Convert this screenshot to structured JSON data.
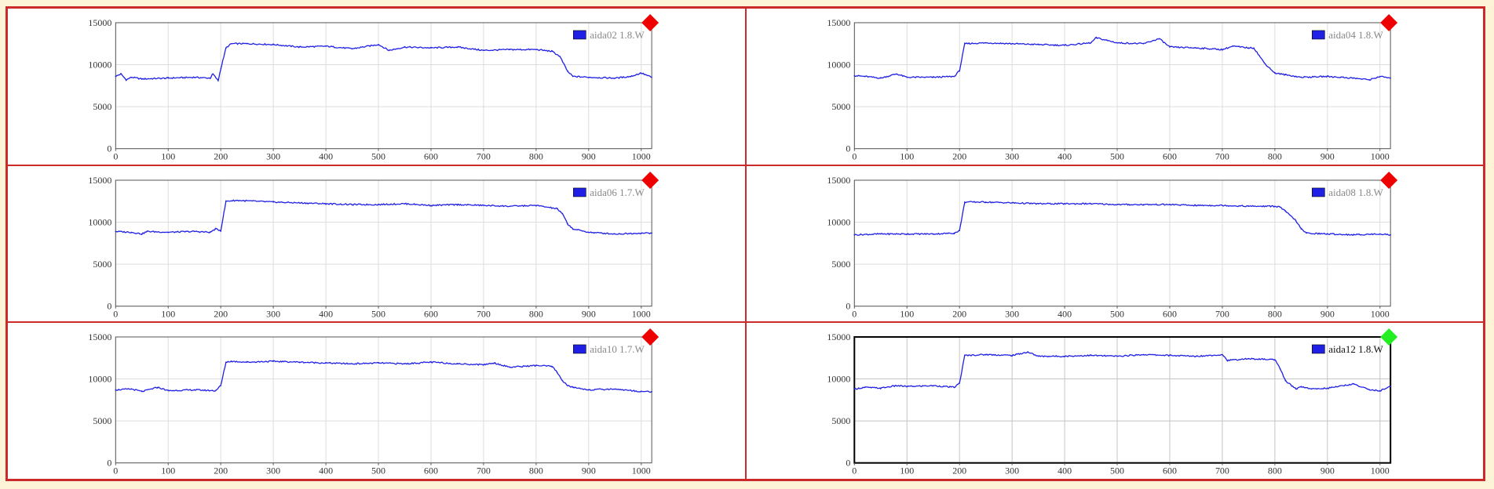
{
  "colors": {
    "line": "#1f1fe6",
    "alarm": "#ee0000",
    "ok": "#22ee22",
    "frame": "#cc2b2b",
    "grid": "#dddddd",
    "background": "#fdf3d7"
  },
  "chart_data": [
    {
      "type": "line",
      "legend": "aida02 1.8.W",
      "status": "alarm",
      "selected": false,
      "xlim": [
        0,
        1020
      ],
      "ylim": [
        0,
        15000
      ],
      "xticks": [
        "0",
        "100",
        "200",
        "300",
        "400",
        "500",
        "600",
        "700",
        "800",
        "900",
        "1000"
      ],
      "yticks": [
        "0",
        "5000",
        "10000",
        "15000"
      ],
      "series": [
        {
          "x": [
            0,
            10,
            20,
            30,
            50,
            100,
            150,
            180,
            185,
            195,
            200,
            210,
            220,
            250,
            300,
            350,
            400,
            450,
            500,
            520,
            550,
            600,
            650,
            700,
            750,
            800,
            830,
            845,
            860,
            870,
            900,
            950,
            980,
            1000,
            1020
          ],
          "values": [
            8600,
            8900,
            8200,
            8500,
            8300,
            8400,
            8500,
            8400,
            8900,
            8100,
            9500,
            12000,
            12500,
            12500,
            12400,
            12100,
            12200,
            11900,
            12400,
            11700,
            12100,
            12000,
            12100,
            11700,
            11800,
            11800,
            11600,
            11000,
            9200,
            8600,
            8500,
            8400,
            8600,
            9000,
            8500
          ]
        }
      ]
    },
    {
      "type": "line",
      "legend": "aida04 1.8.W",
      "status": "alarm",
      "selected": false,
      "xlim": [
        0,
        1020
      ],
      "ylim": [
        0,
        15000
      ],
      "xticks": [
        "0",
        "100",
        "200",
        "300",
        "400",
        "500",
        "600",
        "700",
        "800",
        "900",
        "1000"
      ],
      "yticks": [
        "0",
        "5000",
        "10000",
        "15000"
      ],
      "series": [
        {
          "x": [
            0,
            20,
            50,
            80,
            100,
            150,
            190,
            200,
            210,
            250,
            300,
            350,
            400,
            450,
            460,
            500,
            550,
            580,
            600,
            650,
            700,
            720,
            750,
            760,
            780,
            800,
            820,
            850,
            900,
            950,
            980,
            1000,
            1020
          ],
          "values": [
            8700,
            8600,
            8400,
            8900,
            8500,
            8500,
            8600,
            9300,
            12500,
            12600,
            12500,
            12400,
            12300,
            12600,
            13200,
            12600,
            12500,
            13100,
            12100,
            12000,
            11800,
            12200,
            12000,
            12000,
            10200,
            9000,
            8800,
            8500,
            8600,
            8400,
            8200,
            8600,
            8400
          ]
        }
      ]
    },
    {
      "type": "line",
      "legend": "aida06 1.7.W",
      "status": "alarm",
      "selected": false,
      "xlim": [
        0,
        1020
      ],
      "ylim": [
        0,
        15000
      ],
      "xticks": [
        "0",
        "100",
        "200",
        "300",
        "400",
        "500",
        "600",
        "700",
        "800",
        "900",
        "1000"
      ],
      "yticks": [
        "0",
        "5000",
        "10000",
        "15000"
      ],
      "series": [
        {
          "x": [
            0,
            30,
            50,
            60,
            100,
            150,
            180,
            190,
            200,
            210,
            230,
            300,
            350,
            400,
            450,
            500,
            550,
            600,
            650,
            700,
            750,
            800,
            840,
            850,
            860,
            870,
            900,
            950,
            1000,
            1020
          ],
          "values": [
            8900,
            8800,
            8600,
            8900,
            8800,
            8900,
            8800,
            9200,
            9000,
            12500,
            12600,
            12400,
            12300,
            12200,
            12100,
            12100,
            12200,
            12000,
            12100,
            12000,
            11900,
            12000,
            11600,
            11000,
            9800,
            9200,
            8800,
            8600,
            8700,
            8700
          ]
        }
      ]
    },
    {
      "type": "line",
      "legend": "aida08 1.8.W",
      "status": "alarm",
      "selected": false,
      "xlim": [
        0,
        1020
      ],
      "ylim": [
        0,
        15000
      ],
      "xticks": [
        "0",
        "100",
        "200",
        "300",
        "400",
        "500",
        "600",
        "700",
        "800",
        "900",
        "1000"
      ],
      "yticks": [
        "0",
        "5000",
        "10000",
        "15000"
      ],
      "series": [
        {
          "x": [
            0,
            50,
            100,
            150,
            190,
            200,
            210,
            250,
            300,
            350,
            400,
            450,
            500,
            550,
            600,
            650,
            700,
            750,
            800,
            810,
            820,
            840,
            850,
            860,
            900,
            950,
            1000,
            1020
          ],
          "values": [
            8500,
            8600,
            8600,
            8600,
            8700,
            9000,
            12400,
            12400,
            12300,
            12200,
            12200,
            12200,
            12100,
            12100,
            12100,
            12000,
            12000,
            11900,
            11900,
            11800,
            11300,
            10200,
            9200,
            8700,
            8600,
            8500,
            8600,
            8500
          ]
        }
      ]
    },
    {
      "type": "line",
      "legend": "aida10 1.7.W",
      "status": "alarm",
      "selected": false,
      "xlim": [
        0,
        1020
      ],
      "ylim": [
        0,
        15000
      ],
      "xticks": [
        "0",
        "100",
        "200",
        "300",
        "400",
        "500",
        "600",
        "700",
        "800",
        "900",
        "1000"
      ],
      "yticks": [
        "0",
        "5000",
        "10000",
        "15000"
      ],
      "series": [
        {
          "x": [
            0,
            30,
            50,
            80,
            100,
            150,
            190,
            200,
            210,
            220,
            250,
            300,
            350,
            400,
            450,
            500,
            550,
            600,
            650,
            700,
            720,
            750,
            800,
            830,
            840,
            850,
            860,
            870,
            900,
            950,
            1000,
            1020
          ],
          "values": [
            8700,
            8800,
            8500,
            9000,
            8600,
            8700,
            8600,
            9200,
            12000,
            12100,
            12000,
            12100,
            12000,
            11900,
            11800,
            11900,
            11800,
            12000,
            11800,
            11700,
            11900,
            11400,
            11600,
            11500,
            10800,
            9800,
            9200,
            9000,
            8700,
            8800,
            8500,
            8500
          ]
        }
      ]
    },
    {
      "type": "line",
      "legend": "aida12 1.8.W",
      "status": "ok",
      "selected": true,
      "xlim": [
        0,
        1020
      ],
      "ylim": [
        0,
        15000
      ],
      "xticks": [
        "0",
        "100",
        "200",
        "300",
        "400",
        "500",
        "600",
        "700",
        "800",
        "900",
        "1000"
      ],
      "yticks": [
        "0",
        "5000",
        "10000",
        "15000"
      ],
      "series": [
        {
          "x": [
            0,
            20,
            50,
            80,
            100,
            150,
            190,
            200,
            210,
            250,
            300,
            330,
            350,
            400,
            450,
            500,
            550,
            600,
            650,
            700,
            710,
            750,
            800,
            810,
            820,
            840,
            850,
            870,
            900,
            950,
            980,
            1000,
            1020
          ],
          "values": [
            8800,
            9000,
            8900,
            9200,
            9100,
            9200,
            9000,
            9500,
            12800,
            12900,
            12800,
            13200,
            12700,
            12700,
            12800,
            12700,
            12900,
            12800,
            12700,
            12900,
            12200,
            12400,
            12300,
            11200,
            9800,
            8800,
            9100,
            8800,
            8900,
            9400,
            8700,
            8600,
            9100
          ]
        }
      ]
    }
  ]
}
